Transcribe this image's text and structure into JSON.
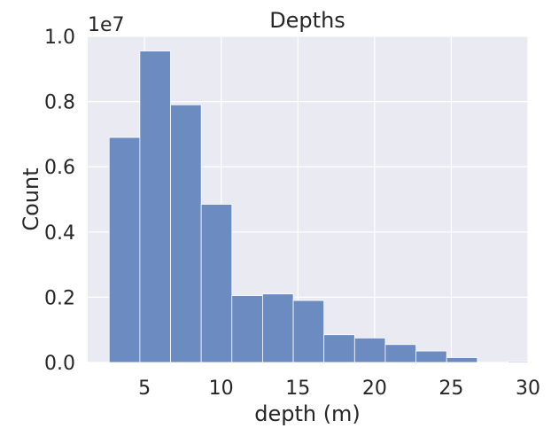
{
  "chart_data": {
    "type": "bar",
    "title": "Depths",
    "xlabel": "depth (m)",
    "ylabel": "Count",
    "y_offset_label": "1e7",
    "xlim": [
      1.3,
      30.0
    ],
    "ylim": [
      0,
      1.0
    ],
    "x_ticks": [
      5,
      10,
      15,
      20,
      25,
      30
    ],
    "y_ticks": [
      0.0,
      0.2,
      0.4,
      0.6,
      0.8,
      1.0
    ],
    "x_tick_labels": [
      "5",
      "10",
      "15",
      "20",
      "25",
      "30"
    ],
    "y_tick_labels": [
      "0.0",
      "0.2",
      "0.4",
      "0.6",
      "0.8",
      "1.0"
    ],
    "bin_edges": [
      2.7,
      4.7,
      6.7,
      8.7,
      10.7,
      12.7,
      14.7,
      16.7,
      18.7,
      20.7,
      22.7,
      24.7,
      26.7,
      28.7,
      30.0
    ],
    "values": [
      0.69,
      0.955,
      0.79,
      0.485,
      0.205,
      0.21,
      0.19,
      0.085,
      0.075,
      0.055,
      0.035,
      0.015,
      0.0,
      0.003
    ],
    "grid": true,
    "colors": {
      "background": "#eaeaf2",
      "bar": "#6b8bc1",
      "grid": "#ffffff",
      "text": "#262626"
    }
  }
}
